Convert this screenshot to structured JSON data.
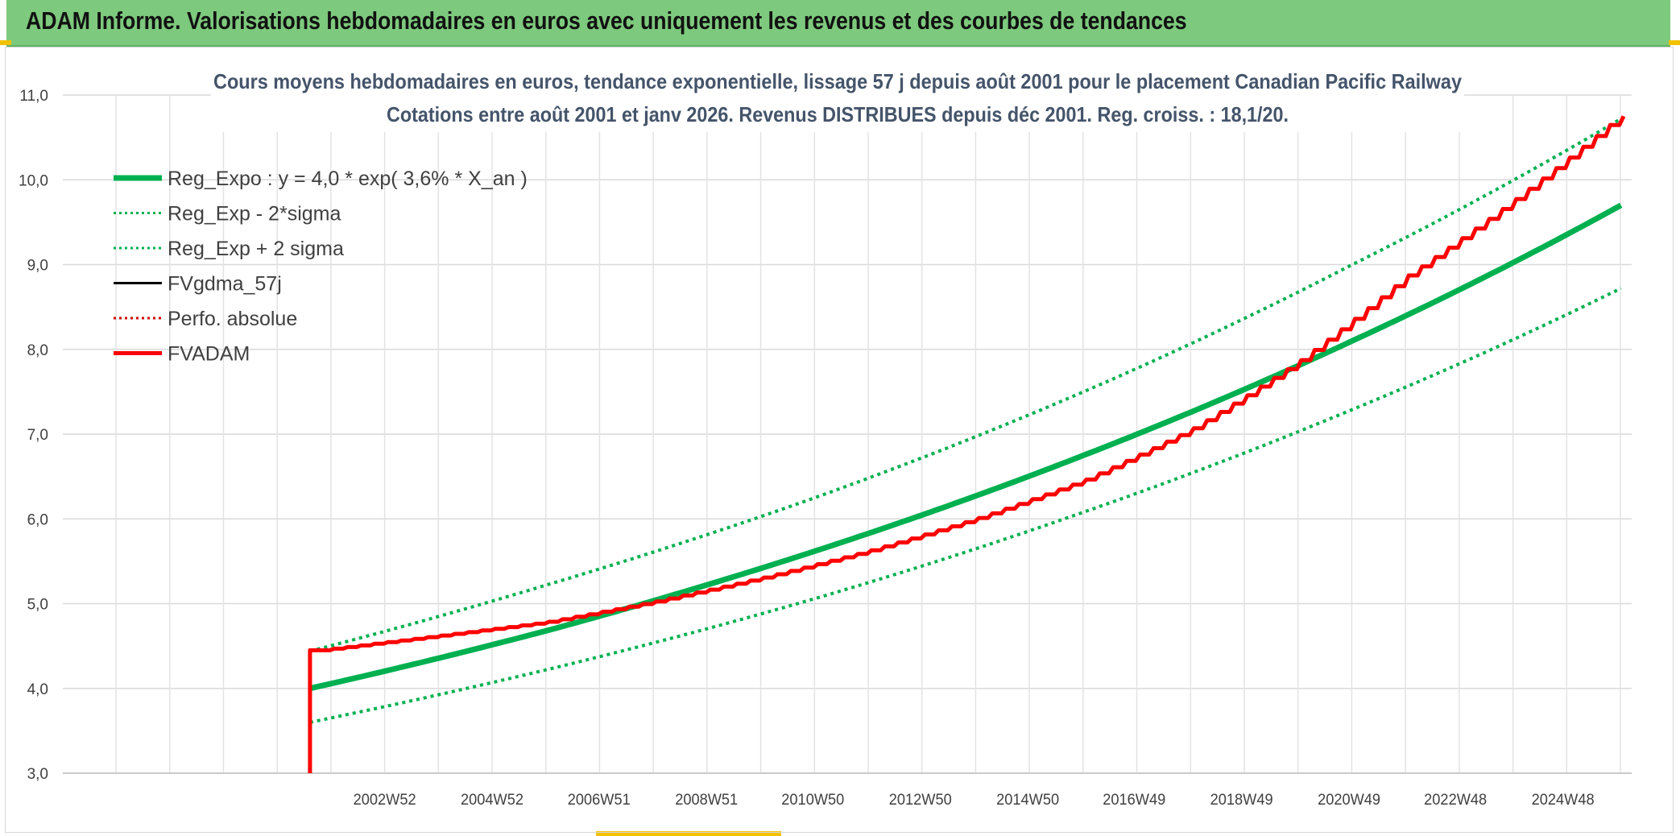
{
  "header": {
    "title": "ADAM Informe. Valorisations hebdomadaires en euros avec uniquement les revenus et des courbes de tendances"
  },
  "chart_data": {
    "type": "line",
    "title": "Cours moyens hebdomadaires en euros, tendance exponentielle, lissage 57 j depuis août 2001 pour le placement Canadian Pacific Railway",
    "subtitle": "Cotations entre août 2001 et janv 2026. Revenus DISTRIBUES depuis déc 2001. Reg. croiss. : 18,1/20.",
    "xlabel": "",
    "ylabel": "",
    "x_range_years": [
      1997.0,
      2026.2
    ],
    "ylim": [
      3.0,
      11.0
    ],
    "y_ticks": [
      "3,0",
      "4,0",
      "5,0",
      "6,0",
      "7,0",
      "8,0",
      "9,0",
      "10,0",
      "11,0"
    ],
    "x_tick_labels": [
      {
        "label": "2002W52",
        "year": 2002.99
      },
      {
        "label": "2004W52",
        "year": 2004.99
      },
      {
        "label": "2006W51",
        "year": 2006.98
      },
      {
        "label": "2008W51",
        "year": 2008.98
      },
      {
        "label": "2010W50",
        "year": 2010.96
      },
      {
        "label": "2012W50",
        "year": 2012.96
      },
      {
        "label": "2014W50",
        "year": 2014.96
      },
      {
        "label": "2016W49",
        "year": 2016.94
      },
      {
        "label": "2018W49",
        "year": 2018.94
      },
      {
        "label": "2020W49",
        "year": 2020.94
      },
      {
        "label": "2022W48",
        "year": 2022.92
      },
      {
        "label": "2024W48",
        "year": 2024.92
      }
    ],
    "grid": true,
    "legend_position": "top-left",
    "series": [
      {
        "name": "Reg_Expo : y = 4,0 * exp( 3,6% *  X_an )",
        "color": "#00b050",
        "style": "solid-thick",
        "x": [
          2001.6,
          2006.0,
          2011.0,
          2016.0,
          2021.0,
          2026.0
        ],
        "y": [
          4.0,
          4.68,
          5.62,
          6.75,
          8.1,
          9.7
        ]
      },
      {
        "name": "Reg_Exp - 2*sigma",
        "color": "#00b050",
        "style": "dotted",
        "x": [
          2001.6,
          2006.0,
          2011.0,
          2016.0,
          2021.0,
          2026.0
        ],
        "y": [
          3.6,
          4.22,
          5.06,
          6.08,
          7.29,
          8.72
        ]
      },
      {
        "name": "Reg_Exp + 2 sigma",
        "color": "#00b050",
        "style": "dotted",
        "x": [
          2001.6,
          2006.0,
          2011.0,
          2016.0,
          2021.0,
          2026.0
        ],
        "y": [
          4.44,
          5.22,
          6.25,
          7.5,
          9.0,
          10.72
        ]
      },
      {
        "name": "FVgdma_57j",
        "color": "#000000",
        "style": "solid",
        "x": [],
        "y": []
      },
      {
        "name": "Perfo. absolue",
        "color": "#d00000",
        "style": "dotted",
        "x": [],
        "y": []
      },
      {
        "name": "FVADAM",
        "color": "#ff0000",
        "style": "solid-thick-stepped",
        "x": [
          2001.6,
          2001.6,
          2001.8,
          2004.0,
          2006.0,
          2008.0,
          2010.0,
          2012.0,
          2014.0,
          2016.0,
          2018.0,
          2020.0,
          2022.0,
          2024.0,
          2026.0
        ],
        "y": [
          3.0,
          4.45,
          4.45,
          4.62,
          4.78,
          5.02,
          5.3,
          5.62,
          6.0,
          6.45,
          7.05,
          7.85,
          8.85,
          9.75,
          10.75
        ]
      }
    ]
  }
}
